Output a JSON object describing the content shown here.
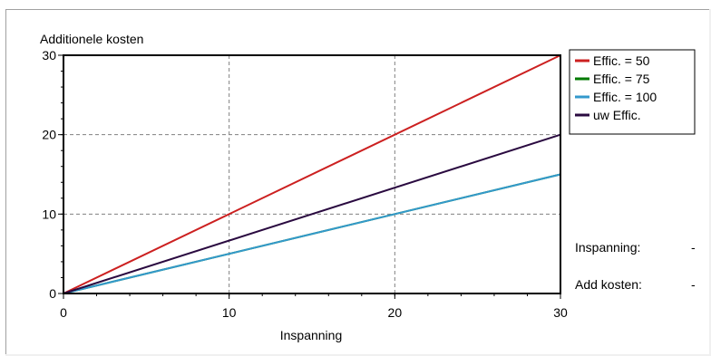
{
  "chart_data": {
    "type": "line",
    "title": "",
    "ylabel": "Additionele kosten",
    "xlabel": "Inspanning",
    "xlim": [
      0,
      30
    ],
    "ylim": [
      0,
      30
    ],
    "xticks": [
      "0",
      "10",
      "20",
      "30"
    ],
    "yticks": [
      "0",
      "10",
      "20",
      "30"
    ],
    "grid": true,
    "legend_position": "top-right",
    "series": [
      {
        "name": "Effic. = 50",
        "color": "#cc2020",
        "x": [
          0,
          30
        ],
        "y": [
          0,
          30
        ]
      },
      {
        "name": "Effic. = 75",
        "color": "#007a00",
        "x": [
          0,
          30
        ],
        "y": [
          0,
          15
        ]
      },
      {
        "name": "Effic. = 100",
        "color": "#3399cc",
        "x": [
          0,
          30
        ],
        "y": [
          0,
          15
        ]
      },
      {
        "name": "uw Effic.",
        "color": "#2a0a40",
        "x": [
          0,
          30
        ],
        "y": [
          0,
          20
        ]
      }
    ]
  },
  "readouts": {
    "inspanning_label": "Inspanning:",
    "inspanning_value": "-",
    "add_kosten_label": "Add kosten:",
    "add_kosten_value": "-"
  }
}
